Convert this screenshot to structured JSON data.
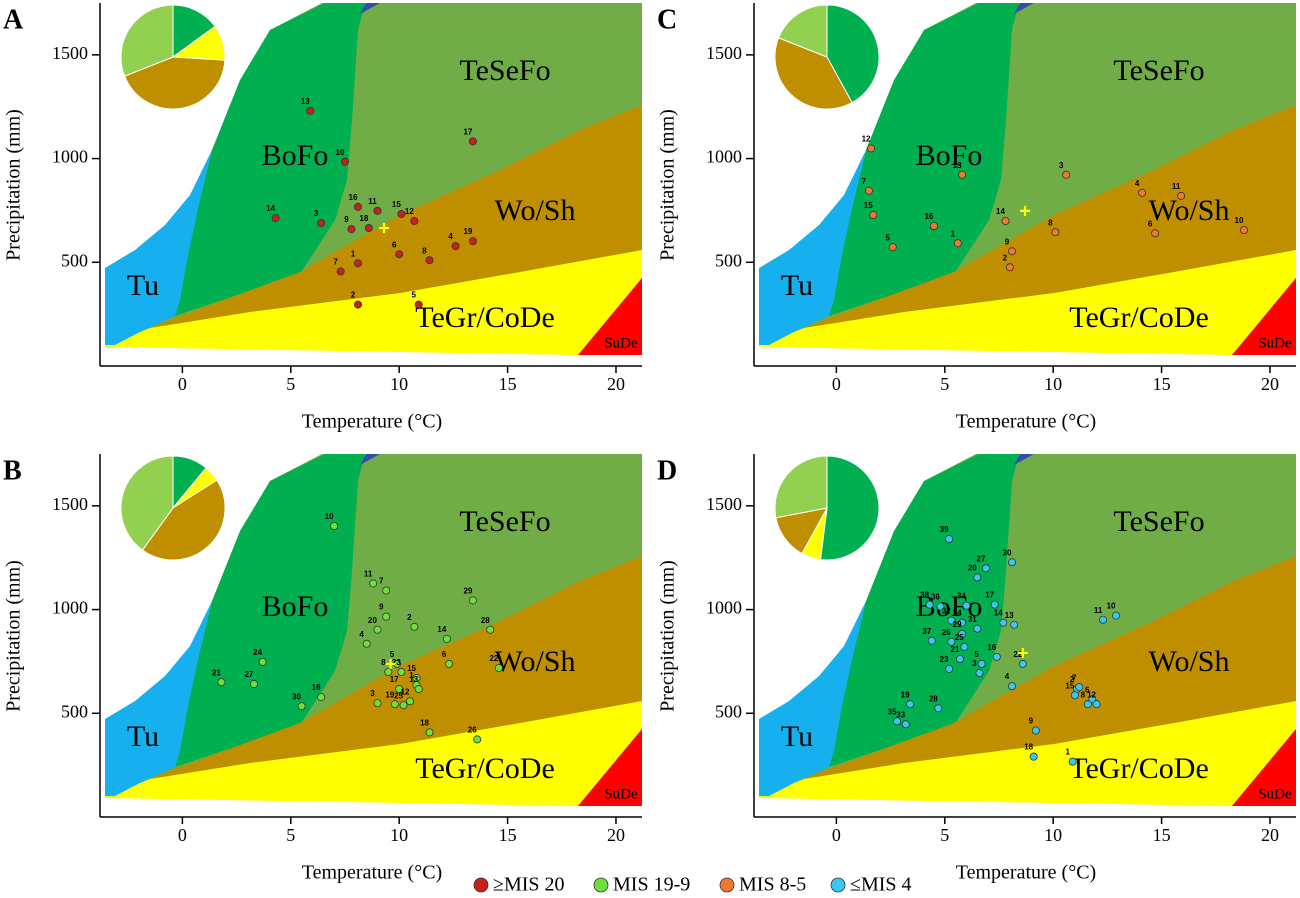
{
  "chart_data": [
    {
      "type": "scatter",
      "panel_label": "A",
      "x_label": "Temperature (°C)",
      "y_label": "Precipitation (mm)",
      "xlim": [
        -3.8,
        21.2
      ],
      "ylim": [
        0,
        1750
      ],
      "xticks": [
        0,
        5,
        10,
        15,
        20
      ],
      "yticks": [
        500,
        1000,
        1500
      ],
      "regions": [
        "TeSeFo",
        "BoFo",
        "Wo/Sh",
        "Tu",
        "TeGr/CoDe",
        "SuDe"
      ],
      "series": [
        {
          "name": "≥MIS 20",
          "color": "#c8201c",
          "labels": [
            "13",
            "10",
            "17",
            "14",
            "3",
            "16",
            "11",
            "15",
            "9",
            "18",
            "12",
            "6",
            "8",
            "4",
            "19",
            "7",
            "1",
            "2",
            "5"
          ],
          "x": [
            5.9,
            7.5,
            13.4,
            4.3,
            6.4,
            8.1,
            9.0,
            10.1,
            7.8,
            8.6,
            10.7,
            10.0,
            11.4,
            12.6,
            13.4,
            7.3,
            8.1,
            8.1,
            10.9
          ],
          "values": [
            1230,
            985,
            1083,
            713,
            689,
            767,
            748,
            733,
            660,
            665,
            699,
            539,
            510,
            578,
            602,
            456,
            495,
            296,
            296
          ]
        }
      ],
      "reference": {
        "x": 9.3,
        "y": 665,
        "color": "#ffff00"
      },
      "pie": {
        "type": "pie",
        "values": [
          15,
          11,
          43,
          31
        ],
        "colors": [
          "#00b050",
          "#ffff00",
          "#bf8f00",
          "#92d050"
        ]
      }
    },
    {
      "type": "scatter",
      "panel_label": "B",
      "x_label": "Temperature (°C)",
      "y_label": "Precipitation (mm)",
      "xlim": [
        -3.8,
        21.2
      ],
      "ylim": [
        0,
        1750
      ],
      "xticks": [
        0,
        5,
        10,
        15,
        20
      ],
      "yticks": [
        500,
        1000,
        1500
      ],
      "regions": [
        "TeSeFo",
        "BoFo",
        "Wo/Sh",
        "Tu",
        "TeGr/CoDe",
        "SuDe"
      ],
      "series": [
        {
          "name": "MIS 19-9",
          "color": "#6ee03a",
          "labels": [
            "10",
            "11",
            "7",
            "9",
            "2",
            "20",
            "4",
            "14",
            "29",
            "28",
            "24",
            "21",
            "27",
            "5",
            "8",
            "23",
            "15",
            "6",
            "22",
            "16",
            "30",
            "17",
            "1",
            "13",
            "12",
            "19",
            "3",
            "25",
            "18",
            "26"
          ],
          "x": [
            7.0,
            8.8,
            9.4,
            9.4,
            10.7,
            9.0,
            8.5,
            12.2,
            13.4,
            14.2,
            3.7,
            1.8,
            3.3,
            9.9,
            9.5,
            10.1,
            10.8,
            12.3,
            14.6,
            6.4,
            5.5,
            10.0,
            10.8,
            10.9,
            10.5,
            9.8,
            9.0,
            10.2,
            11.4,
            13.6
          ],
          "values": [
            1403,
            1126,
            1092,
            966,
            917,
            903,
            835,
            859,
            1044,
            903,
            748,
            650,
            641,
            738,
            699,
            699,
            670,
            738,
            718,
            578,
            534,
            617,
            636,
            617,
            558,
            544,
            549,
            539,
            408,
            374
          ]
        }
      ],
      "reference": {
        "x": 9.6,
        "y": 738,
        "color": "#ffff00"
      },
      "pie": {
        "type": "pie",
        "values": [
          11,
          5,
          44,
          40
        ],
        "colors": [
          "#00b050",
          "#ffff00",
          "#bf8f00",
          "#92d050"
        ]
      }
    },
    {
      "type": "scatter",
      "panel_label": "C",
      "x_label": "Temperature (°C)",
      "y_label": "Precipitation (mm)",
      "xlim": [
        -3.8,
        21.2
      ],
      "ylim": [
        0,
        1750
      ],
      "xticks": [
        0,
        5,
        10,
        15,
        20
      ],
      "yticks": [
        500,
        1000,
        1500
      ],
      "regions": [
        "TeSeFo",
        "BoFo",
        "Wo/Sh",
        "Tu",
        "TeGr/CoDe",
        "SuDe"
      ],
      "series": [
        {
          "name": "MIS 8-5",
          "color": "#f07830",
          "labels": [
            "12",
            "7",
            "15",
            "5",
            "16",
            "13",
            "14",
            "1",
            "9",
            "2",
            "3",
            "8",
            "4",
            "11",
            "6",
            "10"
          ],
          "x": [
            1.6,
            1.5,
            1.7,
            2.6,
            4.5,
            5.8,
            7.8,
            5.6,
            8.1,
            8.0,
            10.6,
            10.1,
            14.1,
            15.9,
            14.7,
            18.8
          ],
          "values": [
            1049,
            845,
            728,
            573,
            675,
            922,
            699,
            592,
            553,
            476,
            922,
            645,
            835,
            820,
            640,
            655
          ]
        }
      ],
      "reference": {
        "x": 8.7,
        "y": 748,
        "color": "#ffff00"
      },
      "pie": {
        "type": "pie",
        "values": [
          42,
          39,
          19
        ],
        "colors": [
          "#00b050",
          "#bf8f00",
          "#92d050"
        ]
      }
    },
    {
      "type": "scatter",
      "panel_label": "D",
      "x_label": "Temperature (°C)",
      "y_label": "Precipitation (mm)",
      "xlim": [
        -3.8,
        21.2
      ],
      "ylim": [
        0,
        1750
      ],
      "xticks": [
        0,
        5,
        10,
        15,
        20
      ],
      "yticks": [
        500,
        1000,
        1500
      ],
      "regions": [
        "TeSeFo",
        "BoFo",
        "Wo/Sh",
        "Tu",
        "TeGr/CoDe",
        "SuDe"
      ],
      "series": [
        {
          "name": "≤MIS 4",
          "color": "#38c8f0",
          "labels": [
            "39",
            "30",
            "27",
            "20",
            "38",
            "36",
            "34",
            "17",
            "32",
            "24",
            "29",
            "31",
            "14",
            "13",
            "37",
            "26",
            "25",
            "16",
            "22",
            "21",
            "5",
            "23",
            "3",
            "4",
            "2",
            "15",
            "7",
            "6",
            "8",
            "12",
            "19",
            "28",
            "35",
            "33",
            "9",
            "18",
            "1",
            "11",
            "10"
          ],
          "x": [
            5.2,
            8.1,
            6.9,
            6.5,
            4.3,
            4.8,
            6.0,
            7.3,
            5.3,
            5.8,
            5.8,
            6.5,
            7.7,
            8.2,
            4.4,
            5.3,
            5.9,
            7.4,
            8.6,
            5.7,
            6.7,
            5.2,
            6.6,
            8.1,
            11.1,
            11.0,
            11.2,
            11.8,
            11.6,
            12.0,
            3.4,
            4.7,
            2.8,
            3.2,
            9.2,
            9.1,
            10.9,
            12.3,
            12.9
          ],
          "values": [
            1340,
            1228,
            1199,
            1155,
            1024,
            1015,
            1019,
            1024,
            947,
            937,
            883,
            908,
            937,
            927,
            850,
            845,
            820,
            772,
            738,
            762,
            738,
            714,
            694,
            631,
            617,
            587,
            626,
            568,
            544,
            544,
            544,
            524,
            461,
            447,
            417,
            291,
            267,
            951,
            971
          ]
        }
      ],
      "reference": {
        "x": 8.6,
        "y": 791,
        "color": "#ffff00"
      },
      "pie": {
        "type": "pie",
        "values": [
          52,
          6,
          14,
          28
        ],
        "colors": [
          "#00b050",
          "#ffff00",
          "#bf8f00",
          "#92d050"
        ]
      }
    }
  ]
}
